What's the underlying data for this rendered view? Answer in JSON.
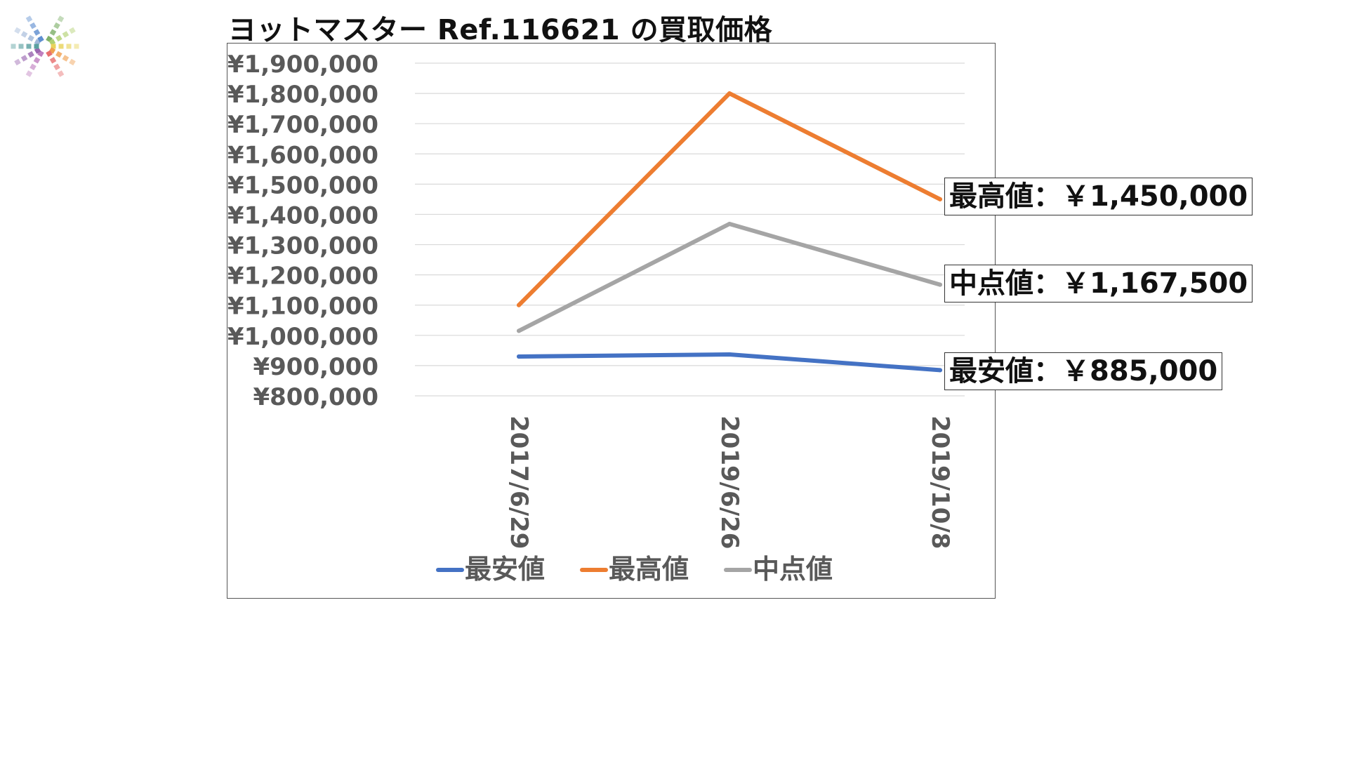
{
  "header": {
    "title": "ヨットマスター Ref.116621 の買取価格"
  },
  "logo": {
    "icon": "color-spokes-logo-icon",
    "colors": [
      "#9fb7d8",
      "#5f8fd0",
      "#7fb06a",
      "#b0d070",
      "#e8d35a",
      "#f0a050",
      "#e87070",
      "#c080c0",
      "#9a66b0",
      "#5aa0a0"
    ]
  },
  "callouts": {
    "max": "最高値：￥1,450,000",
    "mid": "中点値：￥1,167,500",
    "min": "最安値：￥885,000"
  },
  "chart_data": {
    "type": "line",
    "x": [
      "2017/6/29",
      "2019/6/26",
      "2019/10/8"
    ],
    "ylim": [
      800000,
      1900000
    ],
    "yticks": [
      "¥1,900,000",
      "¥1,800,000",
      "¥1,700,000",
      "¥1,600,000",
      "¥1,500,000",
      "¥1,400,000",
      "¥1,300,000",
      "¥1,200,000",
      "¥1,100,000",
      "¥1,000,000",
      "¥900,000",
      "¥800,000"
    ],
    "ytick_values": [
      1900000,
      1800000,
      1700000,
      1600000,
      1500000,
      1400000,
      1300000,
      1200000,
      1100000,
      1000000,
      900000,
      800000
    ],
    "grid": true,
    "legend_position": "bottom",
    "series": [
      {
        "name": "最安値",
        "values": [
          930000,
          937000,
          885000
        ],
        "color": "#4472c4"
      },
      {
        "name": "最高値",
        "values": [
          1100000,
          1800000,
          1450000
        ],
        "color": "#ed7d31"
      },
      {
        "name": "中点値",
        "values": [
          1015000,
          1368500,
          1167500
        ],
        "color": "#a5a5a5"
      }
    ]
  }
}
